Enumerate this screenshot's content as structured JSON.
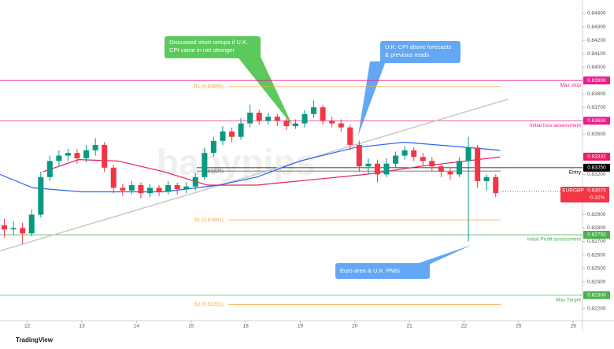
{
  "chart_data": {
    "type": "candlestick",
    "xlim": [
      -0.5,
      10.17
    ],
    "ylim": [
      0.8211,
      0.845
    ],
    "xticks": [
      {
        "value": 0,
        "label": "12"
      },
      {
        "value": 1,
        "label": "13"
      },
      {
        "value": 2,
        "label": "14"
      },
      {
        "value": 3,
        "label": "15"
      },
      {
        "value": 4,
        "label": "18"
      },
      {
        "value": 5,
        "label": "19"
      },
      {
        "value": 6,
        "label": "20"
      },
      {
        "value": 7,
        "label": "21"
      },
      {
        "value": 8,
        "label": "22"
      },
      {
        "value": 9,
        "label": "25"
      },
      {
        "value": 10,
        "label": "26"
      }
    ],
    "yticks": [
      {
        "value": 0.844,
        "label": "0.84400"
      },
      {
        "value": 0.843,
        "label": "0.84300"
      },
      {
        "value": 0.842,
        "label": "0.84200"
      },
      {
        "value": 0.841,
        "label": "0.84100"
      },
      {
        "value": 0.84,
        "label": "0.84000"
      },
      {
        "value": 0.838,
        "label": "0.83800"
      },
      {
        "value": 0.837,
        "label": "0.83700"
      },
      {
        "value": 0.835,
        "label": "0.83500"
      },
      {
        "value": 0.832,
        "label": "0.83200"
      },
      {
        "value": 0.83,
        "label": "0.83000"
      },
      {
        "value": 0.829,
        "label": "0.82900"
      },
      {
        "value": 0.828,
        "label": "0.82800"
      },
      {
        "value": 0.827,
        "label": "0.82700"
      },
      {
        "value": 0.826,
        "label": "0.82600"
      },
      {
        "value": 0.825,
        "label": "0.82500"
      },
      {
        "value": 0.824,
        "label": "0.82400"
      },
      {
        "value": 0.822,
        "label": "0.82200"
      }
    ],
    "up_color": "#089981",
    "down_color": "#f23645",
    "x": [
      -0.42,
      -0.253,
      -0.087,
      0.08,
      0.247,
      0.413,
      0.58,
      0.747,
      0.913,
      1.08,
      1.247,
      1.413,
      1.58,
      1.747,
      1.913,
      2.08,
      2.247,
      2.413,
      2.58,
      2.747,
      2.913,
      3.08,
      3.247,
      3.413,
      3.58,
      3.747,
      3.913,
      4.08,
      4.247,
      4.413,
      4.58,
      4.747,
      4.913,
      5.08,
      5.247,
      5.413,
      5.58,
      5.747,
      5.913,
      6.08,
      6.247,
      6.413,
      6.58,
      6.747,
      6.913,
      7.08,
      7.247,
      7.413,
      7.58,
      7.747,
      7.913,
      8.08,
      8.247,
      8.413,
      8.58
    ],
    "open": [
      0.8282,
      0.8279,
      0.828,
      0.8276,
      0.829,
      0.8318,
      0.833,
      0.8334,
      0.8336,
      0.8332,
      0.8338,
      0.8342,
      0.8325,
      0.831,
      0.8308,
      0.8312,
      0.8306,
      0.831,
      0.8307,
      0.8312,
      0.8309,
      0.8311,
      0.8318,
      0.8336,
      0.8345,
      0.8352,
      0.8348,
      0.8358,
      0.8366,
      0.836,
      0.8363,
      0.836,
      0.8356,
      0.8358,
      0.8365,
      0.837,
      0.836,
      0.8358,
      0.8355,
      0.8342,
      0.8326,
      0.8328,
      0.832,
      0.8328,
      0.8334,
      0.8338,
      0.8333,
      0.833,
      0.8326,
      0.8322,
      0.832,
      0.833,
      0.834,
      0.8315,
      0.8318
    ],
    "high": [
      0.8287,
      0.8285,
      0.8284,
      0.8294,
      0.8322,
      0.8334,
      0.8338,
      0.8339,
      0.8339,
      0.8342,
      0.8347,
      0.8344,
      0.8327,
      0.8313,
      0.8315,
      0.8314,
      0.8313,
      0.8312,
      0.8315,
      0.8314,
      0.8314,
      0.8321,
      0.834,
      0.8348,
      0.8356,
      0.8355,
      0.8362,
      0.8372,
      0.8368,
      0.8366,
      0.8365,
      0.8362,
      0.8361,
      0.8368,
      0.8375,
      0.8372,
      0.8363,
      0.8361,
      0.8357,
      0.8345,
      0.8332,
      0.8331,
      0.8332,
      0.8337,
      0.8341,
      0.834,
      0.8336,
      0.8333,
      0.8328,
      0.8325,
      0.8333,
      0.8348,
      0.8342,
      0.832,
      0.832
    ],
    "low": [
      0.8273,
      0.8275,
      0.8268,
      0.8274,
      0.8288,
      0.8315,
      0.8326,
      0.833,
      0.8328,
      0.8329,
      0.8334,
      0.8322,
      0.8306,
      0.8304,
      0.8305,
      0.8302,
      0.8303,
      0.8304,
      0.8305,
      0.8305,
      0.8306,
      0.8308,
      0.8316,
      0.8333,
      0.8342,
      0.8344,
      0.8346,
      0.8355,
      0.8357,
      0.8357,
      0.8356,
      0.8353,
      0.8354,
      0.8355,
      0.8362,
      0.8357,
      0.8355,
      0.8352,
      0.8338,
      0.8322,
      0.832,
      0.8314,
      0.8318,
      0.8325,
      0.8331,
      0.833,
      0.8326,
      0.8322,
      0.8318,
      0.8316,
      0.8318,
      0.827,
      0.831,
      0.8308,
      0.8303
    ],
    "close": [
      0.8279,
      0.828,
      0.8276,
      0.829,
      0.8318,
      0.833,
      0.8334,
      0.8336,
      0.8332,
      0.8338,
      0.8342,
      0.8325,
      0.831,
      0.8308,
      0.8312,
      0.8306,
      0.831,
      0.8307,
      0.8312,
      0.8309,
      0.8311,
      0.8318,
      0.8336,
      0.8345,
      0.8352,
      0.8348,
      0.8358,
      0.8366,
      0.836,
      0.8363,
      0.836,
      0.8356,
      0.8358,
      0.8365,
      0.837,
      0.836,
      0.8358,
      0.8355,
      0.8342,
      0.8326,
      0.8328,
      0.832,
      0.8328,
      0.8334,
      0.8338,
      0.8333,
      0.833,
      0.8326,
      0.8322,
      0.832,
      0.833,
      0.834,
      0.8315,
      0.8318,
      0.8306
    ],
    "series": [
      {
        "color": "#2962ff",
        "x": [
          -0.5,
          0.1,
          1,
          2.5,
          3.5,
          4.2,
          5,
          6,
          6.9,
          7.8,
          8.66
        ],
        "values": [
          0.832,
          0.831,
          0.8307,
          0.8307,
          0.8312,
          0.8318,
          0.833,
          0.834,
          0.8344,
          0.8341,
          0.8338
        ]
      },
      {
        "color": "#e91e63",
        "x": [
          0.29,
          0.94,
          1.66,
          2.5,
          3.3,
          4.2,
          5.2,
          6.2,
          7.2,
          8.66
        ],
        "values": [
          0.8322,
          0.8331,
          0.833,
          0.8322,
          0.8312,
          0.8312,
          0.8316,
          0.832,
          0.8326,
          0.8333
        ]
      }
    ],
    "trendline": {
      "color": "#c8c8c8",
      "x": [
        -0.5,
        8.8
      ],
      "values": [
        0.8263,
        0.8376
      ]
    },
    "levels": [
      {
        "name": "Max stop",
        "value": 0.839,
        "label": "0.83900",
        "color": "#e91e8c"
      },
      {
        "name": "Initial loss assessment",
        "value": 0.836,
        "label": "0.83600",
        "color": "#e91e8c"
      },
      {
        "name": "Entry",
        "value": 0.8325,
        "label": "0.83250",
        "color": "#000000"
      },
      {
        "name": "Initial Profit assessment",
        "value": 0.8275,
        "label": "0.82750",
        "color": "#4caf50"
      },
      {
        "name": "Max Target",
        "value": 0.823,
        "label": "0.82300",
        "color": "#4caf50"
      }
    ],
    "pivots": [
      {
        "name": "R1 (0.83855)",
        "value": 0.83855,
        "color": "#f7a540"
      },
      {
        "name": "(0.83225)",
        "value": 0.83225,
        "color": "#555555"
      },
      {
        "name": "S1 (0.82861)",
        "value": 0.82861,
        "color": "#f7a540"
      },
      {
        "name": "S2 (0.82231)",
        "value": 0.82231,
        "color": "#f7a540"
      }
    ],
    "ma_label": {
      "value": 0.83332,
      "label": "0.83332",
      "color": "#e91e63"
    },
    "last_price": {
      "symbol": "EURGBP",
      "value": 0.83073,
      "label": "0.83073",
      "change": "-0.32%",
      "color": "#f23645"
    },
    "annotations": [
      {
        "lines": [
          "Discussed short setups if U.K.",
          "CPI came in net stronger"
        ],
        "color": "#5cc95c"
      },
      {
        "lines": [
          "U.K. CPI above forecasts",
          "& previous reads"
        ],
        "color": "#64a8f5"
      },
      {
        "lines": [
          "Euro area & U.K. PMIs"
        ],
        "color": "#64a8f5"
      }
    ],
    "watermark": "babypips",
    "brand": "TradingView"
  }
}
